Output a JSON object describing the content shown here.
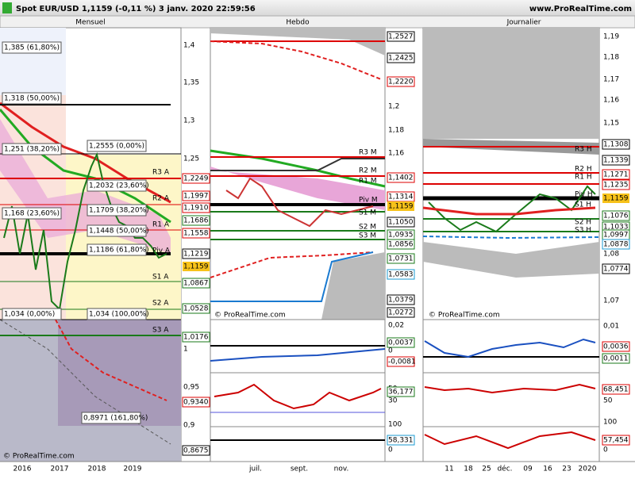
{
  "header": {
    "title": "Spot EUR/USD 1,1159 (-0,11 %) 3 janv. 2020 22:59:56",
    "site": "www.ProRealTime.com"
  },
  "panels": [
    {
      "title": "Mensuel",
      "price_labels": [
        "1,4",
        "1,35",
        "1,3",
        "1,25",
        "1,2249",
        "1,1997",
        "1,1910",
        "1,1686",
        "1,1558",
        "1,1219",
        "1,1159",
        "1,0867",
        "1,0528",
        "1,0176",
        "1",
        "0,95",
        "0,9340",
        "0,9",
        "0,8675"
      ],
      "level_labels": [
        "R3 A",
        "R2 A",
        "R1 A",
        "Piv A",
        "S1 A",
        "S2 A",
        "S3 A"
      ],
      "fib_labels": [
        "1,385 (61,80%)",
        "1,318 (50,00%)",
        "1,251 (38,20%)",
        "1,2555 (0,00%)",
        "1,2032 (23,60%)",
        "1,168 (23,60%)",
        "1,1709 (38,20%)",
        "1,1448 (50,00%)",
        "1,1186 (61,80%)",
        "1,034 (0,00%)",
        "1,034 (100,00%)",
        "0,8971 (161,80%)"
      ],
      "indicator_labels": [],
      "x_labels": [
        "2016",
        "2017",
        "2018",
        "2019"
      ],
      "watermark": "© ProRealTime.com"
    },
    {
      "title": "Hebdo",
      "price_labels": [
        "1,2527",
        "1,2425",
        "1,2220",
        "1,2",
        "1,18",
        "1,16",
        "1,1402",
        "1,1314",
        "1,1159",
        "1,1050",
        "1,0935",
        "1,0856",
        "1,0731",
        "1,0583",
        "1,0379",
        "1,0272"
      ],
      "level_labels": [
        "R3 M",
        "R2 M",
        "R1 M",
        "Piv M",
        "S1 M",
        "S2 M",
        "S3 M"
      ],
      "fib_labels": [],
      "indicator_labels": [
        "0,02",
        "0,0037",
        "0",
        "-0,0081",
        "50",
        "36,177",
        "30",
        "100",
        "58,331",
        "0"
      ],
      "x_labels": [
        "juil.",
        "sept.",
        "nov."
      ],
      "watermark": "© ProRealTime.com"
    },
    {
      "title": "Journalier",
      "price_labels": [
        "1,19",
        "1,18",
        "1,17",
        "1,16",
        "1,15",
        "1,1308",
        "1,1339",
        "1,1271",
        "1,1235",
        "1,1159",
        "1,1076",
        "1,1033",
        "1,0997",
        "1,0878",
        "1,08",
        "1,0774",
        "1,07"
      ],
      "level_labels": [
        "R3 H",
        "R2 H",
        "R1 H",
        "Piv H",
        "S1 H",
        "S2 H",
        "S3 H"
      ],
      "fib_labels": [],
      "indicator_labels": [
        "0,01",
        "0,0036",
        "0,0011",
        "68,451",
        "50",
        "100",
        "57,454",
        "0"
      ],
      "x_labels": [
        "11",
        "18",
        "25",
        "déc.",
        "09",
        "16",
        "23",
        "2020"
      ],
      "watermark": "© ProRealTime.com"
    }
  ]
}
